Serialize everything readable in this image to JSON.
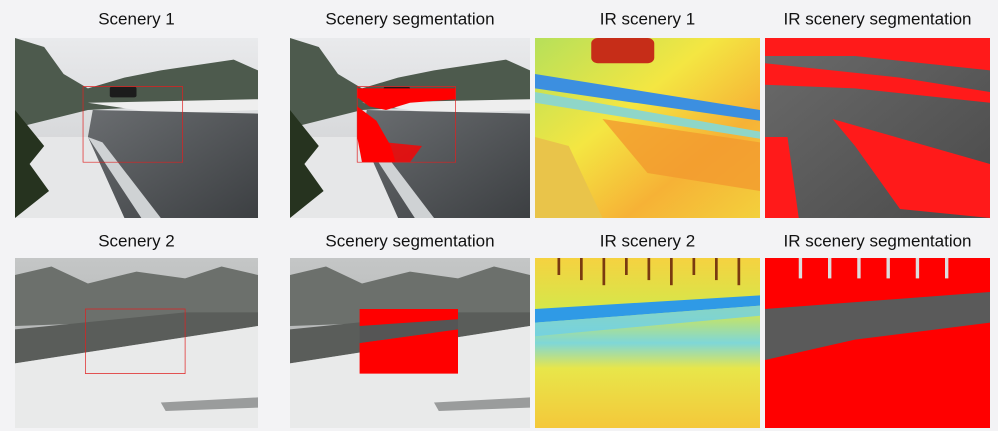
{
  "rows": [
    {
      "panels": [
        {
          "caption": "Scenery 1"
        },
        {
          "caption": "Scenery segmentation"
        },
        {
          "caption": "IR scenery 1"
        },
        {
          "caption": "IR scenery segmentation"
        }
      ]
    },
    {
      "panels": [
        {
          "caption": "Scenery 2"
        },
        {
          "caption": "Scenery segmentation"
        },
        {
          "caption": "IR scenery 2"
        },
        {
          "caption": "IR scenery segmentation"
        }
      ]
    }
  ]
}
